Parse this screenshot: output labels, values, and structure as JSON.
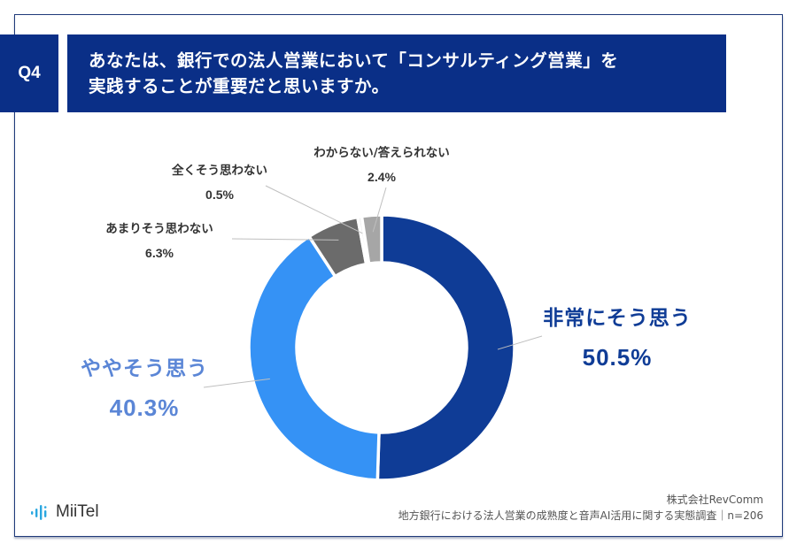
{
  "question": {
    "number": "Q4",
    "title_lines": [
      "あなたは、銀行での法人営業において「コンサルティング営業」を",
      "実践することが重要だと思いますか。"
    ]
  },
  "chart_data": {
    "type": "pie",
    "variant": "donut",
    "title": "あなたは、銀行での法人営業において「コンサルティング営業」を実践することが重要だと思いますか。",
    "start_angle": "top, clockwise",
    "unit": "%",
    "slices": [
      {
        "label": "非常にそう思う",
        "value": 50.5,
        "value_label": "50.5%",
        "color": "#0f3c96",
        "label_color": "#0f3c96"
      },
      {
        "label": "ややそう思う",
        "value": 40.3,
        "value_label": "40.3%",
        "color": "#3592f5",
        "label_color": "#5b86d6"
      },
      {
        "label": "あまりそう思わない",
        "value": 6.3,
        "value_label": "6.3%",
        "color": "#6b6b6b",
        "label_color": "#333333"
      },
      {
        "label": "全くそう思わない",
        "value": 0.5,
        "value_label": "0.5%",
        "color": "#eeeeee",
        "label_color": "#333333"
      },
      {
        "label": "わからない/答えられない",
        "value": 2.4,
        "value_label": "2.4%",
        "color": "#a6a6a6",
        "label_color": "#333333"
      }
    ]
  },
  "footer": {
    "logo_text": "MiiTel",
    "company": "株式会社RevComm",
    "survey": "地方銀行における法人営業の成熟度と音声AI活用に関する実態調査｜n=206"
  },
  "colors": {
    "header_bg": "#0a2f87",
    "frame": "#1f3a7a",
    "logo_accent": "#2aa7e0"
  }
}
